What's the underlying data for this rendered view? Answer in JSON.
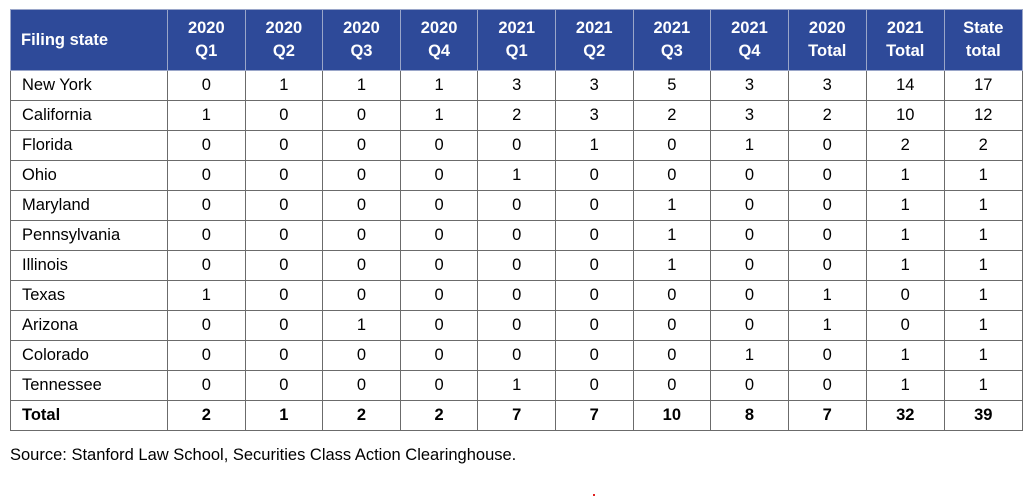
{
  "table": {
    "headers": [
      {
        "l1": "Filing state",
        "l2": ""
      },
      {
        "l1": "2020",
        "l2": "Q1"
      },
      {
        "l1": "2020",
        "l2": "Q2"
      },
      {
        "l1": "2020",
        "l2": "Q3"
      },
      {
        "l1": "2020",
        "l2": "Q4"
      },
      {
        "l1": "2021",
        "l2": "Q1"
      },
      {
        "l1": "2021",
        "l2": "Q2"
      },
      {
        "l1": "2021",
        "l2": "Q3"
      },
      {
        "l1": "2021",
        "l2": "Q4"
      },
      {
        "l1": "2020",
        "l2": "Total"
      },
      {
        "l1": "2021",
        "l2": "Total"
      },
      {
        "l1": "State",
        "l2": "total"
      }
    ],
    "rows": [
      [
        "New York",
        "0",
        "1",
        "1",
        "1",
        "3",
        "3",
        "5",
        "3",
        "3",
        "14",
        "17"
      ],
      [
        "California",
        "1",
        "0",
        "0",
        "1",
        "2",
        "3",
        "2",
        "3",
        "2",
        "10",
        "12"
      ],
      [
        "Florida",
        "0",
        "0",
        "0",
        "0",
        "0",
        "1",
        "0",
        "1",
        "0",
        "2",
        "2"
      ],
      [
        "Ohio",
        "0",
        "0",
        "0",
        "0",
        "1",
        "0",
        "0",
        "0",
        "0",
        "1",
        "1"
      ],
      [
        "Maryland",
        "0",
        "0",
        "0",
        "0",
        "0",
        "0",
        "1",
        "0",
        "0",
        "1",
        "1"
      ],
      [
        "Pennsylvania",
        "0",
        "0",
        "0",
        "0",
        "0",
        "0",
        "1",
        "0",
        "0",
        "1",
        "1"
      ],
      [
        "Illinois",
        "0",
        "0",
        "0",
        "0",
        "0",
        "0",
        "1",
        "0",
        "0",
        "1",
        "1"
      ],
      [
        "Texas",
        "1",
        "0",
        "0",
        "0",
        "0",
        "0",
        "0",
        "0",
        "1",
        "0",
        "1"
      ],
      [
        "Arizona",
        "0",
        "0",
        "1",
        "0",
        "0",
        "0",
        "0",
        "0",
        "1",
        "0",
        "1"
      ],
      [
        "Colorado",
        "0",
        "0",
        "0",
        "0",
        "0",
        "0",
        "0",
        "1",
        "0",
        "1",
        "1"
      ],
      [
        "Tennessee",
        "0",
        "0",
        "0",
        "0",
        "1",
        "0",
        "0",
        "0",
        "0",
        "1",
        "1"
      ]
    ],
    "total_row": [
      "Total",
      "2",
      "1",
      "2",
      "2",
      "7",
      "7",
      "10",
      "8",
      "7",
      "32",
      "39"
    ]
  },
  "source_note": "Source: Stanford Law School, Securities Class Action Clearinghouse.",
  "colors": {
    "header_bg": "#2e4a99",
    "header_text": "#ffffff",
    "border": "#6b6b6b"
  }
}
